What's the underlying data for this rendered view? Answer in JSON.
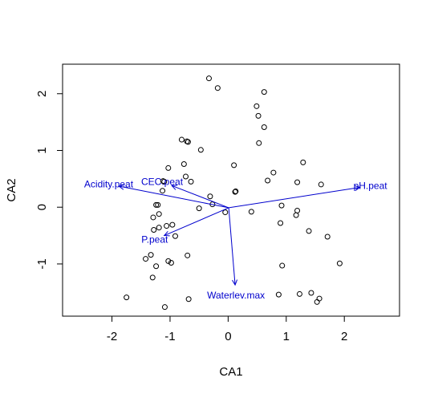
{
  "chart_data": {
    "type": "scatter",
    "title": "",
    "xlabel": "CA1",
    "ylabel": "CA2",
    "xlim": [
      -2.85,
      2.95
    ],
    "ylim": [
      -1.92,
      2.52
    ],
    "xticks": [
      -2,
      -1,
      0,
      1,
      2
    ],
    "yticks": [
      -1,
      0,
      1,
      2
    ],
    "grid": false,
    "colors": {
      "points": "#000000",
      "vectors": "#0000cd",
      "frame": "#000000"
    },
    "points": [
      {
        "x": -0.33,
        "y": 2.27
      },
      {
        "x": -0.18,
        "y": 2.1
      },
      {
        "x": 0.62,
        "y": 2.03
      },
      {
        "x": 0.49,
        "y": 1.78
      },
      {
        "x": 0.52,
        "y": 1.61
      },
      {
        "x": 0.62,
        "y": 1.41
      },
      {
        "x": -0.8,
        "y": 1.19
      },
      {
        "x": -0.69,
        "y": 1.15
      },
      {
        "x": -0.71,
        "y": 1.16
      },
      {
        "x": 0.53,
        "y": 1.13
      },
      {
        "x": -0.47,
        "y": 1.01
      },
      {
        "x": 1.29,
        "y": 0.79
      },
      {
        "x": -0.76,
        "y": 0.76
      },
      {
        "x": 0.1,
        "y": 0.74
      },
      {
        "x": -1.03,
        "y": 0.69
      },
      {
        "x": 0.78,
        "y": 0.61
      },
      {
        "x": -0.73,
        "y": 0.54
      },
      {
        "x": 0.68,
        "y": 0.47
      },
      {
        "x": -0.64,
        "y": 0.45
      },
      {
        "x": -1.1,
        "y": 0.45
      },
      {
        "x": -1.12,
        "y": 0.46
      },
      {
        "x": 1.19,
        "y": 0.44
      },
      {
        "x": 1.6,
        "y": 0.4
      },
      {
        "x": -1.13,
        "y": 0.29
      },
      {
        "x": 0.12,
        "y": 0.27
      },
      {
        "x": 0.13,
        "y": 0.28
      },
      {
        "x": -0.31,
        "y": 0.19
      },
      {
        "x": -1.24,
        "y": 0.04
      },
      {
        "x": -1.21,
        "y": 0.04
      },
      {
        "x": -0.27,
        "y": 0.05
      },
      {
        "x": 0.92,
        "y": 0.03
      },
      {
        "x": -0.5,
        "y": -0.02
      },
      {
        "x": -0.05,
        "y": -0.09
      },
      {
        "x": 0.4,
        "y": -0.08
      },
      {
        "x": 1.19,
        "y": -0.06
      },
      {
        "x": -1.19,
        "y": -0.12
      },
      {
        "x": -1.29,
        "y": -0.18
      },
      {
        "x": 1.17,
        "y": -0.14
      },
      {
        "x": -0.96,
        "y": -0.31
      },
      {
        "x": -1.06,
        "y": -0.33
      },
      {
        "x": -1.19,
        "y": -0.36
      },
      {
        "x": -1.28,
        "y": -0.4
      },
      {
        "x": 0.9,
        "y": -0.28
      },
      {
        "x": 1.39,
        "y": -0.42
      },
      {
        "x": -0.91,
        "y": -0.51
      },
      {
        "x": 1.71,
        "y": -0.52
      },
      {
        "x": -1.33,
        "y": -0.84
      },
      {
        "x": -0.7,
        "y": -0.85
      },
      {
        "x": -1.42,
        "y": -0.91
      },
      {
        "x": -1.03,
        "y": -0.95
      },
      {
        "x": -0.98,
        "y": -0.98
      },
      {
        "x": 1.92,
        "y": -0.99
      },
      {
        "x": -1.24,
        "y": -1.04
      },
      {
        "x": 0.93,
        "y": -1.03
      },
      {
        "x": -1.3,
        "y": -1.24
      },
      {
        "x": 0.87,
        "y": -1.54
      },
      {
        "x": 1.23,
        "y": -1.53
      },
      {
        "x": 1.43,
        "y": -1.51
      },
      {
        "x": 1.57,
        "y": -1.61
      },
      {
        "x": 1.53,
        "y": -1.67
      },
      {
        "x": -1.75,
        "y": -1.59
      },
      {
        "x": -0.68,
        "y": -1.62
      },
      {
        "x": -1.09,
        "y": -1.76
      }
    ],
    "vectors": [
      {
        "name": "Acidity.peat",
        "x": -1.88,
        "y": 0.37
      },
      {
        "name": "CEC.peat",
        "x": -0.97,
        "y": 0.38
      },
      {
        "name": "pH.peat",
        "x": 2.27,
        "y": 0.35
      },
      {
        "name": "P.peat",
        "x": -1.1,
        "y": -0.5
      },
      {
        "name": "Waterlev.max",
        "x": 0.12,
        "y": -1.37
      }
    ],
    "vector_origin": {
      "x": 0.01,
      "y": -0.01
    }
  }
}
